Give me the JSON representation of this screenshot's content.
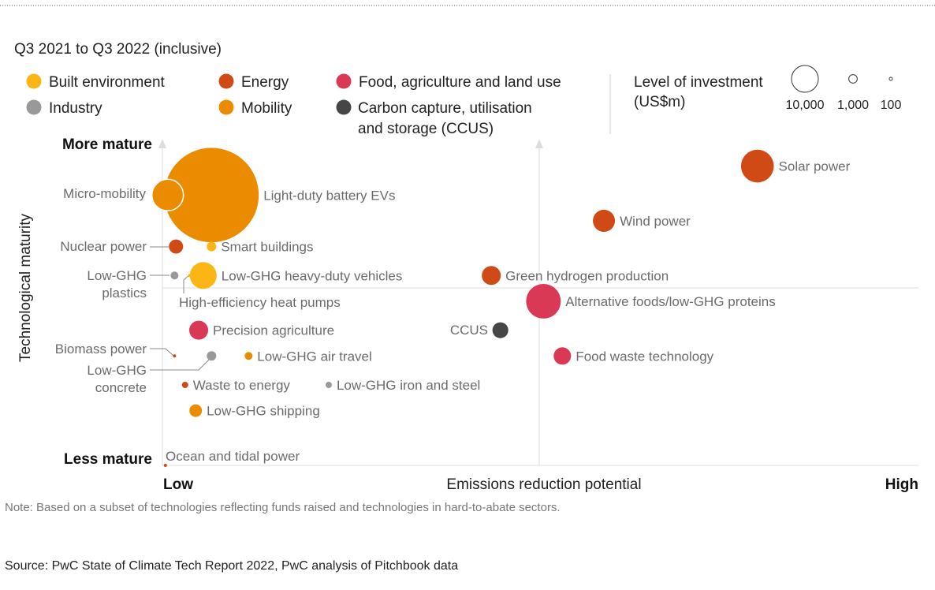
{
  "chart_data": {
    "type": "bubble",
    "subtitle": "Q3 2021 to Q3 2022 (inclusive)",
    "xlabel": "Emissions reduction potential",
    "x_low_label": "Low",
    "x_high_label": "High",
    "ylabel": "Technological maturity",
    "y_high_label": "More mature",
    "y_low_label": "Less mature",
    "xlim": [
      0,
      100
    ],
    "ylim": [
      0,
      100
    ],
    "grid": "quadrant lines at midpoints",
    "legend_position": "top",
    "categories": [
      {
        "key": "built",
        "name": "Built environment",
        "color": "#fbb616"
      },
      {
        "key": "energy",
        "name": "Energy",
        "color": "#d04a16"
      },
      {
        "key": "food",
        "name": "Food, agriculture and land use",
        "color": "#d93954"
      },
      {
        "key": "industry",
        "name": "Industry",
        "color": "#999999"
      },
      {
        "key": "mobility",
        "name": "Mobility",
        "color": "#eb8c00"
      },
      {
        "key": "ccus",
        "name_lines": [
          "Carbon capture, utilisation",
          "and storage (CCUS)"
        ],
        "color": "#464646"
      }
    ],
    "size_legend": {
      "title_lines": [
        "Level of investment",
        "(US$m)"
      ],
      "values": [
        10000,
        1000,
        100
      ],
      "labels": [
        "10,000",
        "1,000",
        "100"
      ]
    },
    "points": [
      {
        "name": "Light-duty battery EVs",
        "category": "mobility",
        "x": 6.5,
        "y": 84,
        "investment": 124000,
        "label_side": "right"
      },
      {
        "name": "Micro-mobility",
        "category": "mobility",
        "x": 0.7,
        "y": 84,
        "investment": 13800,
        "label_side": "left"
      },
      {
        "name": "Solar power",
        "category": "energy",
        "x": 78.7,
        "y": 93,
        "investment": 15000,
        "label_side": "right"
      },
      {
        "name": "Wind power",
        "category": "energy",
        "x": 58.4,
        "y": 76,
        "investment": 6800,
        "label_side": "right"
      },
      {
        "name": "Nuclear power",
        "category": "energy",
        "x": 1.8,
        "y": 68,
        "investment": 2800,
        "label_side": "left"
      },
      {
        "name": "Smart buildings",
        "category": "built",
        "x": 6.5,
        "y": 68,
        "investment": 1250,
        "label_side": "right"
      },
      {
        "name_lines": [
          "Low-GHG",
          "plastics"
        ],
        "category": "industry",
        "x": 1.6,
        "y": 59,
        "investment": 860,
        "label_side": "left"
      },
      {
        "name": "Low-GHG heavy-duty vehicles",
        "category": "built",
        "x": 5.4,
        "y": 59,
        "investment": 10000,
        "label_side": "right"
      },
      {
        "name": "High-efficiency heat pumps",
        "category": "built",
        "x": 3.6,
        "y": 59,
        "investment": 140,
        "label_side": "below"
      },
      {
        "name": "Green hydrogen production",
        "category": "energy",
        "x": 43.5,
        "y": 59,
        "investment": 5000,
        "label_side": "right"
      },
      {
        "name": "Alternative foods/low-GHG proteins",
        "category": "food",
        "x": 50.4,
        "y": 51,
        "investment": 16700,
        "label_side": "right"
      },
      {
        "name": "Precision agriculture",
        "category": "food",
        "x": 4.8,
        "y": 42,
        "investment": 5000,
        "label_side": "right"
      },
      {
        "name": "CCUS",
        "category": "ccus",
        "x": 44.7,
        "y": 42,
        "investment": 3500,
        "label_side": "left"
      },
      {
        "name": "Biomass power",
        "category": "energy",
        "x": 1.6,
        "y": 34,
        "investment": 140,
        "label_side": "left"
      },
      {
        "name_lines": [
          "Low-GHG",
          "concrete"
        ],
        "category": "industry",
        "x": 6.5,
        "y": 34,
        "investment": 1250,
        "label_side": "left"
      },
      {
        "name": "Low-GHG air travel",
        "category": "mobility",
        "x": 11.4,
        "y": 34,
        "investment": 860,
        "label_side": "right"
      },
      {
        "name": "Food waste technology",
        "category": "food",
        "x": 52.9,
        "y": 34,
        "investment": 4200,
        "label_side": "right"
      },
      {
        "name": "Waste to energy",
        "category": "energy",
        "x": 3.0,
        "y": 25,
        "investment": 550,
        "label_side": "right"
      },
      {
        "name": "Low-GHG iron and steel",
        "category": "industry",
        "x": 22.0,
        "y": 25,
        "investment": 550,
        "label_side": "right"
      },
      {
        "name": "Low-GHG shipping",
        "category": "mobility",
        "x": 4.4,
        "y": 17,
        "investment": 2200,
        "label_side": "right"
      },
      {
        "name": "Ocean and tidal power",
        "category": "energy",
        "x": 0.4,
        "y": 0,
        "investment": 140,
        "label_side": "above"
      }
    ],
    "note": "Note: Based on a subset of technologies reflecting funds raised and technologies in hard-to-abate sectors.",
    "source": "Source: PwC State of Climate Tech Report 2022, PwC analysis of Pitchbook data"
  }
}
